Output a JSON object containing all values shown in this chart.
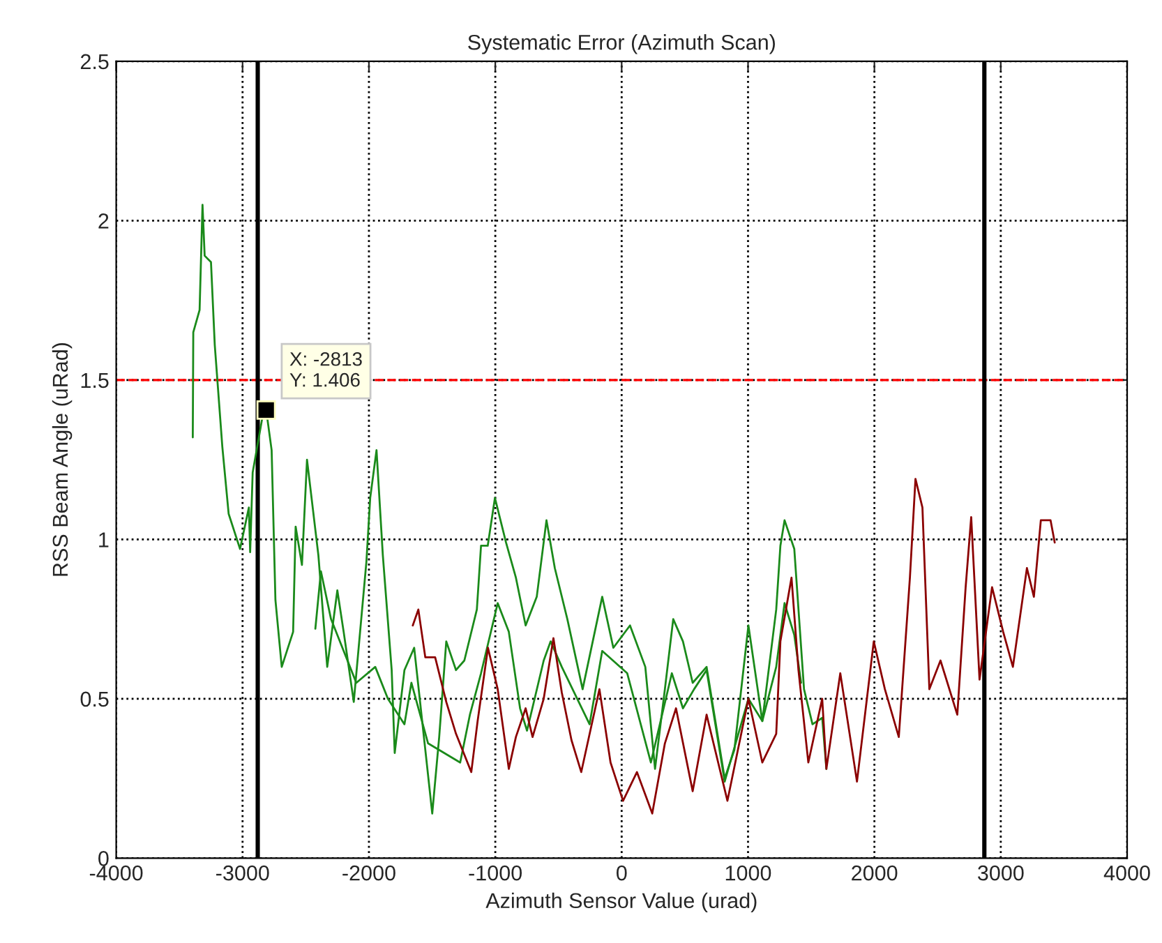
{
  "chart_data": {
    "type": "line",
    "title": "Systematic Error (Azimuth Scan)",
    "xlabel": "Azimuth Sensor Value (urad)",
    "ylabel": "RSS Beam Angle (uRad)",
    "xlim": [
      -4000,
      4000
    ],
    "xticks": [
      -4000,
      -3000,
      -2000,
      -1000,
      0,
      1000,
      2000,
      3000,
      4000
    ],
    "ylim": [
      0,
      2.5
    ],
    "yticks": [
      0,
      0.5,
      1,
      1.5,
      2,
      2.5
    ],
    "grid": true,
    "marker": "none",
    "line_style": "solid",
    "series": [
      {
        "color": "#1a8a1a",
        "x": [
          -3394,
          -3390,
          -3340,
          -3317,
          -3300,
          -3250,
          -3220,
          -3160,
          -3110,
          -3020,
          -2950,
          -2940,
          -2920,
          -2840,
          -2813,
          -2770,
          -2740,
          -2690,
          -2600,
          -2580,
          -2530,
          -2490,
          -2400,
          -2330,
          -2250,
          -2200,
          -2120,
          -2020,
          -1990,
          -1940,
          -1890,
          -1820,
          -1796,
          -1719,
          -1642,
          -1554,
          -1499,
          -1444,
          -1388,
          -1311,
          -1245,
          -1146,
          -1113,
          -1060,
          -1003,
          -915,
          -837,
          -760,
          -672,
          -595,
          -529,
          -430,
          -309,
          -154,
          -66,
          66,
          187,
          264,
          342,
          408,
          485,
          562,
          672,
          815,
          892,
          1003,
          1113,
          1223,
          1256,
          1289,
          1366,
          1443,
          1510,
          1587,
          1620
        ],
        "values": [
          1.32,
          1.65,
          1.72,
          2.05,
          1.89,
          1.87,
          1.61,
          1.29,
          1.08,
          0.97,
          1.1,
          0.96,
          1.21,
          1.39,
          1.406,
          1.28,
          0.81,
          0.6,
          0.71,
          1.04,
          0.92,
          1.25,
          0.95,
          0.6,
          0.84,
          0.71,
          0.49,
          0.93,
          1.13,
          1.28,
          0.95,
          0.59,
          0.33,
          0.59,
          0.66,
          0.34,
          0.14,
          0.38,
          0.68,
          0.59,
          0.62,
          0.78,
          0.98,
          0.98,
          1.13,
          0.99,
          0.88,
          0.73,
          0.82,
          1.06,
          0.91,
          0.75,
          0.53,
          0.82,
          0.66,
          0.73,
          0.6,
          0.28,
          0.53,
          0.75,
          0.68,
          0.55,
          0.6,
          0.25,
          0.34,
          0.73,
          0.43,
          0.78,
          0.98,
          1.06,
          0.97,
          0.53,
          0.42,
          0.44,
          0.28
        ]
      },
      {
        "color": "#1a8a1a",
        "x": [
          -2424,
          -2380,
          -2300,
          -2200,
          -2100,
          -1950,
          -1850,
          -1719,
          -1664,
          -1532,
          -1278,
          -1201,
          -1113,
          -981,
          -893,
          -804,
          -749,
          -617,
          -562,
          -474,
          -254,
          -154,
          44,
          231,
          397,
          485,
          573,
          672,
          815,
          1003,
          1113,
          1223,
          1289,
          1366,
          1420
        ],
        "values": [
          0.72,
          0.9,
          0.75,
          0.65,
          0.55,
          0.6,
          0.5,
          0.42,
          0.55,
          0.36,
          0.3,
          0.45,
          0.58,
          0.8,
          0.71,
          0.47,
          0.4,
          0.62,
          0.68,
          0.6,
          0.42,
          0.65,
          0.58,
          0.3,
          0.58,
          0.47,
          0.53,
          0.59,
          0.24,
          0.5,
          0.43,
          0.6,
          0.8,
          0.7,
          0.55
        ]
      },
      {
        "color": "#8b0000",
        "x": [
          -1653,
          -1609,
          -1554,
          -1476,
          -1388,
          -1311,
          -1190,
          -1140,
          -1058,
          -981,
          -893,
          -837,
          -760,
          -705,
          -617,
          -540,
          -474,
          -397,
          -320,
          -176,
          -88,
          11,
          121,
          242,
          342,
          430,
          562,
          672,
          837,
          1003,
          1113,
          1223,
          1256,
          1344,
          1399,
          1477,
          1587,
          1620,
          1730,
          1862,
          1995,
          2083,
          2193,
          2281,
          2325,
          2380,
          2435,
          2523,
          2656,
          2722,
          2766,
          2832,
          2931,
          3019,
          3096,
          3207,
          3262,
          3317,
          3394,
          3427
        ],
        "values": [
          0.73,
          0.78,
          0.63,
          0.63,
          0.49,
          0.39,
          0.27,
          0.43,
          0.66,
          0.53,
          0.28,
          0.38,
          0.47,
          0.38,
          0.5,
          0.69,
          0.52,
          0.37,
          0.27,
          0.53,
          0.3,
          0.18,
          0.27,
          0.14,
          0.36,
          0.47,
          0.21,
          0.45,
          0.18,
          0.5,
          0.3,
          0.39,
          0.68,
          0.88,
          0.59,
          0.3,
          0.5,
          0.28,
          0.58,
          0.24,
          0.68,
          0.53,
          0.38,
          0.88,
          1.19,
          1.1,
          0.53,
          0.62,
          0.45,
          0.85,
          1.07,
          0.56,
          0.85,
          0.71,
          0.6,
          0.91,
          0.82,
          1.06,
          1.06,
          0.99
        ]
      }
    ],
    "ref_lines": [
      {
        "axis": "y",
        "value": 1.5,
        "color": "#ff0000",
        "line_style": "dashed"
      },
      {
        "axis": "x",
        "value": -2880,
        "color": "#000000",
        "line_style": "solid"
      },
      {
        "axis": "x",
        "value": 2870,
        "color": "#000000",
        "line_style": "solid"
      }
    ],
    "annotations": [
      {
        "text": "X: -2813\nY: 1.406",
        "x": -2813,
        "y": 1.406
      }
    ]
  }
}
